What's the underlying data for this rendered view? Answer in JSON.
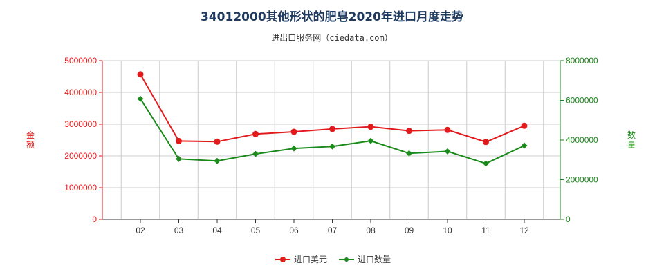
{
  "title": "34012000其他形状的肥皂2020年进口月度走势",
  "subtitle": "进出口服务网（ciedata.com）",
  "colors": {
    "value_series": "#e31a1c",
    "quantity_series": "#1a8a1a",
    "left_axis": "#e31a1c",
    "right_axis": "#1a8a1a",
    "grid": "#cccccc",
    "title": "#1f3a5f"
  },
  "chart_data": {
    "type": "line",
    "categories": [
      "02",
      "03",
      "04",
      "05",
      "06",
      "07",
      "08",
      "09",
      "10",
      "11",
      "12"
    ],
    "y_left": {
      "label": "金额",
      "ylim": [
        0,
        5000000
      ],
      "ticks": [
        "0",
        "1000000",
        "2000000",
        "3000000",
        "4000000",
        "5000000"
      ]
    },
    "y_right": {
      "label": "数量",
      "ylim": [
        0,
        8000000
      ],
      "ticks": [
        "0",
        "2000000",
        "4000000",
        "6000000",
        "8000000"
      ]
    },
    "series": [
      {
        "name": "进口美元",
        "axis": "left",
        "marker": "circle",
        "values": [
          4570000,
          2470000,
          2450000,
          2690000,
          2760000,
          2850000,
          2920000,
          2790000,
          2820000,
          2440000,
          2950000
        ]
      },
      {
        "name": "进口数量",
        "axis": "right",
        "marker": "diamond",
        "values": [
          6080000,
          3050000,
          2950000,
          3300000,
          3580000,
          3680000,
          3960000,
          3330000,
          3430000,
          2820000,
          3720000
        ]
      }
    ],
    "grid": true,
    "legend": "bottom-center"
  }
}
